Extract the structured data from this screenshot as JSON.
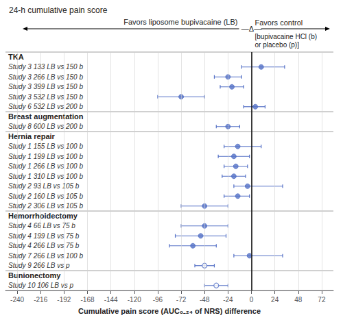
{
  "chart_data": {
    "type": "forest",
    "title": "24-h cumulative pain score",
    "xlabel": "Cumulative pain score (AUC₀₋₂₄ of NRS) difference",
    "xlim": [
      -252,
      84
    ],
    "xticks": [
      -240,
      -216,
      -192,
      -168,
      -144,
      -120,
      -96,
      -72,
      -48,
      -24,
      0,
      24,
      48,
      72
    ],
    "grid": true,
    "annotations": [
      "Favors liposome bupivacaine (LB)",
      "—Δ—",
      "Favors control",
      "[bupivacaine HCl (b)",
      "or placebo (p)]"
    ],
    "sections": [
      {
        "header": "TKA",
        "studies": [
          {
            "label": "Study 3 133 LB vs 150 b",
            "point": 10,
            "ci_lo": -10,
            "ci_hi": 34,
            "marker": "filled"
          },
          {
            "label": "Study 3 266 LB vs 150 b",
            "point": -24,
            "ci_lo": -38,
            "ci_hi": -10,
            "marker": "filled"
          },
          {
            "label": "Study 3 399 LB vs 150 b",
            "point": -20,
            "ci_lo": -32,
            "ci_hi": -8,
            "marker": "filled"
          },
          {
            "label": "Study 3 532 LB vs 150 b",
            "point": -72,
            "ci_lo": -96,
            "ci_hi": -48,
            "marker": "filled"
          },
          {
            "label": "Study 6 532 LB vs 200 b",
            "point": 4,
            "ci_lo": -8,
            "ci_hi": 14,
            "marker": "filled"
          }
        ]
      },
      {
        "header": "Breast augmentation",
        "studies": [
          {
            "label": "Study 8 600 LB vs 200 b",
            "point": -24,
            "ci_lo": -36,
            "ci_hi": -12,
            "marker": "filled"
          }
        ]
      },
      {
        "header": "Hernia repair",
        "studies": [
          {
            "label": "Study 1 155 LB vs 100 b",
            "point": -14,
            "ci_lo": -28,
            "ci_hi": 10,
            "marker": "filled"
          },
          {
            "label": "Study 1 199 LB vs 100 b",
            "point": -18,
            "ci_lo": -34,
            "ci_hi": -2,
            "marker": "filled"
          },
          {
            "label": "Study 1 266 LB vs 100 b",
            "point": -16,
            "ci_lo": -28,
            "ci_hi": -4,
            "marker": "filled"
          },
          {
            "label": "Study 1 310 LB vs 100 b",
            "point": -18,
            "ci_lo": -30,
            "ci_hi": -6,
            "marker": "filled"
          },
          {
            "label": "Study 2 93 LB vs 105 b",
            "point": -4,
            "ci_lo": -18,
            "ci_hi": 32,
            "marker": "filled"
          },
          {
            "label": "Study 2 160 LB vs 105 b",
            "point": -14,
            "ci_lo": -28,
            "ci_hi": -2,
            "marker": "filled"
          },
          {
            "label": "Study 2 306 LB vs 105 b",
            "point": -48,
            "ci_lo": -72,
            "ci_hi": -24,
            "marker": "filled"
          }
        ]
      },
      {
        "header": "Hemorrhoidectomy",
        "studies": [
          {
            "label": "Study 4 66 LB vs 75 b",
            "point": -48,
            "ci_lo": -72,
            "ci_hi": -24,
            "marker": "filled"
          },
          {
            "label": "Study 4 199 LB vs 75 b",
            "point": -52,
            "ci_lo": -78,
            "ci_hi": -26,
            "marker": "filled"
          },
          {
            "label": "Study 4 266 LB vs 75 b",
            "point": -60,
            "ci_lo": -84,
            "ci_hi": -36,
            "marker": "filled"
          },
          {
            "label": "Study 7 266 LB vs 100 b",
            "point": -2,
            "ci_lo": -18,
            "ci_hi": 32,
            "marker": "filled"
          },
          {
            "label": "Study 9 266 LB vs p",
            "point": -48,
            "ci_lo": -58,
            "ci_hi": -38,
            "marker": "open"
          }
        ]
      },
      {
        "header": "Bunionectomy",
        "studies": [
          {
            "label": "Study 10 106 LB vs p",
            "point": -36,
            "ci_lo": -48,
            "ci_hi": -24,
            "marker": "open"
          }
        ]
      }
    ]
  }
}
